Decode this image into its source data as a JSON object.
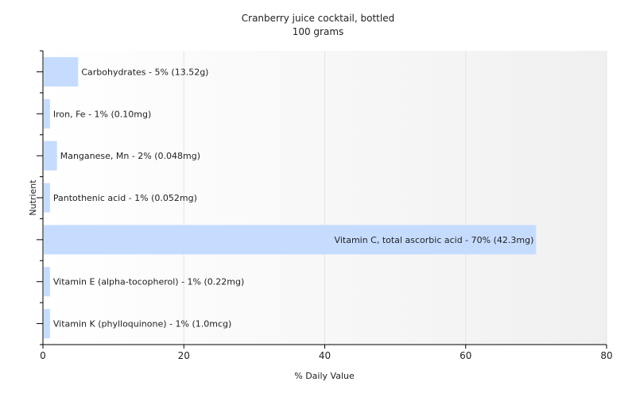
{
  "chart_data": {
    "type": "bar",
    "orientation": "horizontal",
    "title": "Cranberry juice cocktail, bottled",
    "subtitle": "100 grams",
    "xlabel": "% Daily Value",
    "ylabel": "Nutrient",
    "xlim": [
      0,
      80
    ],
    "xticks": [
      0,
      20,
      40,
      60,
      80
    ],
    "grid": true,
    "bar_color": "#c6dcff",
    "categories": [
      "Carbohydrates",
      "Iron, Fe",
      "Manganese, Mn",
      "Pantothenic acid",
      "Vitamin C, total ascorbic acid",
      "Vitamin E (alpha-tocopherol)",
      "Vitamin K (phylloquinone)"
    ],
    "values": [
      5,
      1,
      2,
      1,
      70,
      1,
      1
    ],
    "labels": [
      "Carbohydrates - 5% (13.52g)",
      "Iron, Fe - 1% (0.10mg)",
      "Manganese, Mn - 2% (0.048mg)",
      "Pantothenic acid - 1% (0.052mg)",
      "Vitamin C, total ascorbic acid - 70% (42.3mg)",
      "Vitamin E (alpha-tocopherol) - 1% (0.22mg)",
      "Vitamin K (phylloquinone) - 1% (1.0mcg)"
    ]
  }
}
